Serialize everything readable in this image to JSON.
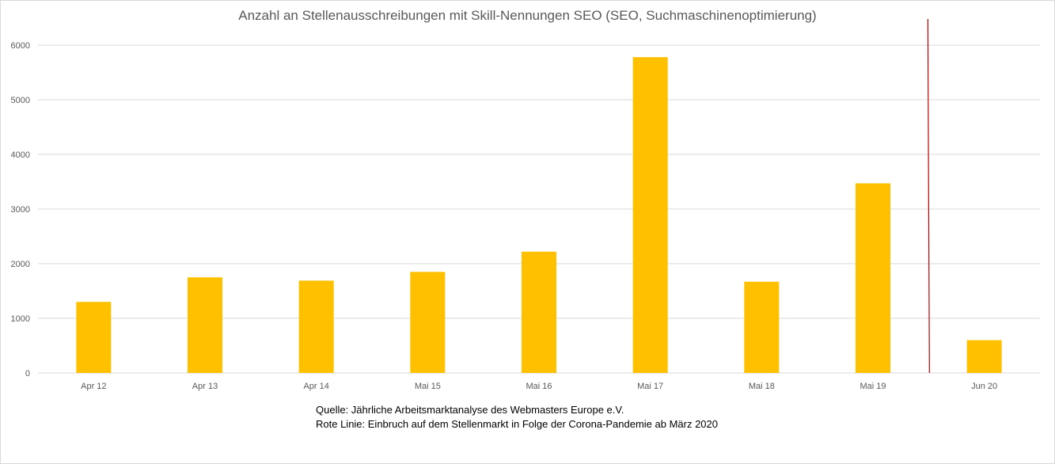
{
  "chart_data": {
    "type": "bar",
    "title": "Anzahl an Stellenausschreibungen mit Skill-Nennungen SEO (SEO, Suchmaschinenoptimierung)",
    "categories": [
      "Apr 12",
      "Apr 13",
      "Apr 14",
      "Mai 15",
      "Mai 16",
      "Mai 17",
      "Mai 18",
      "Mai 19",
      "Jun 20"
    ],
    "values": [
      1300,
      1750,
      1690,
      1850,
      2220,
      5780,
      1670,
      3470,
      600
    ],
    "ylim": [
      0,
      6000
    ],
    "yticks": [
      0,
      1000,
      2000,
      3000,
      4000,
      5000,
      6000
    ],
    "xlabel": "",
    "ylabel": "",
    "grid": true,
    "bar_color": "#ffc000",
    "marker_line": {
      "between": [
        "Mai 19",
        "Jun 20"
      ],
      "color": "#c00000"
    }
  },
  "notes": {
    "source": "Quelle: Jährliche Arbeitsmarktanalyse des Webmasters Europe e.V.",
    "red_line": "Rote Linie: Einbruch  auf dem Stellenmarkt in Folge der Corona-Pandemie  ab März 2020"
  }
}
